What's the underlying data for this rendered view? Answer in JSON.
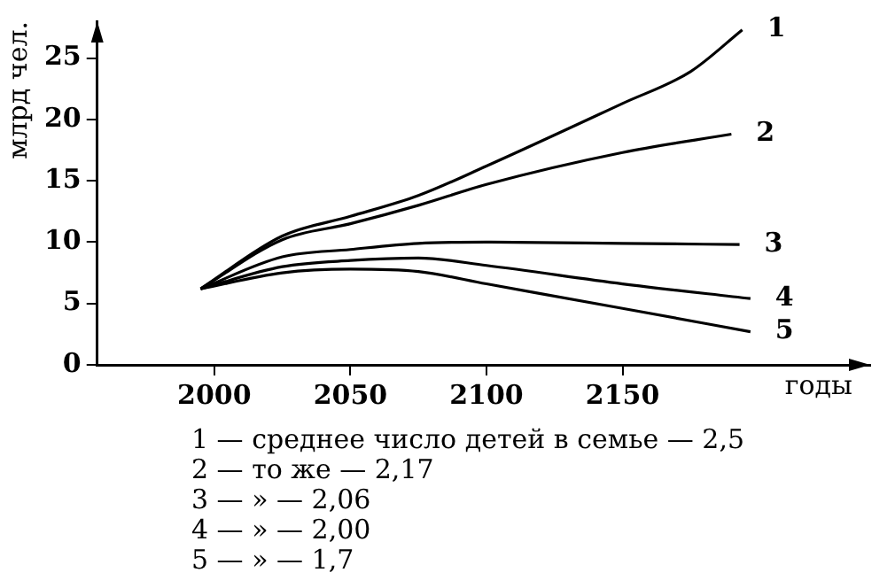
{
  "chart_data": {
    "type": "line",
    "xlabel": "годы",
    "ylabel": "млрд чел.",
    "xlim": [
      1957,
      2241
    ],
    "ylim": [
      0,
      28
    ],
    "xticks": [
      2000,
      2050,
      2100,
      2150
    ],
    "yticks": [
      0,
      5,
      10,
      15,
      20,
      25
    ],
    "grid": false,
    "legend": false,
    "marker": "none",
    "line_style": "solid",
    "series": [
      {
        "name": "1",
        "color": "#000000",
        "x": [
          1995,
          2025,
          2050,
          2075,
          2100,
          2150,
          2175,
          2194
        ],
        "values": [
          6.2,
          10.5,
          12.1,
          13.8,
          16.2,
          21.3,
          23.9,
          27.3
        ]
      },
      {
        "name": "2",
        "color": "#000000",
        "x": [
          1995,
          2025,
          2050,
          2075,
          2100,
          2150,
          2190
        ],
        "values": [
          6.2,
          10.2,
          11.5,
          13.0,
          14.7,
          17.3,
          18.8
        ]
      },
      {
        "name": "3",
        "color": "#000000",
        "x": [
          1995,
          2025,
          2050,
          2075,
          2100,
          2150,
          2193
        ],
        "values": [
          6.2,
          8.8,
          9.4,
          9.9,
          10.0,
          9.9,
          9.8
        ]
      },
      {
        "name": "4",
        "color": "#000000",
        "x": [
          1995,
          2025,
          2050,
          2075,
          2100,
          2150,
          2197
        ],
        "values": [
          6.2,
          8.0,
          8.5,
          8.7,
          8.1,
          6.6,
          5.4
        ]
      },
      {
        "name": "5",
        "color": "#000000",
        "x": [
          1995,
          2025,
          2050,
          2075,
          2100,
          2150,
          2197
        ],
        "values": [
          6.2,
          7.5,
          7.8,
          7.6,
          6.6,
          4.6,
          2.7
        ]
      }
    ],
    "annotations": [
      "1 — среднее число детей в семье — 2,5",
      "2 — то же — 2,17",
      "3 — » — 2,06",
      "4 — » — 2,00",
      "5 — » — 1,7"
    ]
  }
}
